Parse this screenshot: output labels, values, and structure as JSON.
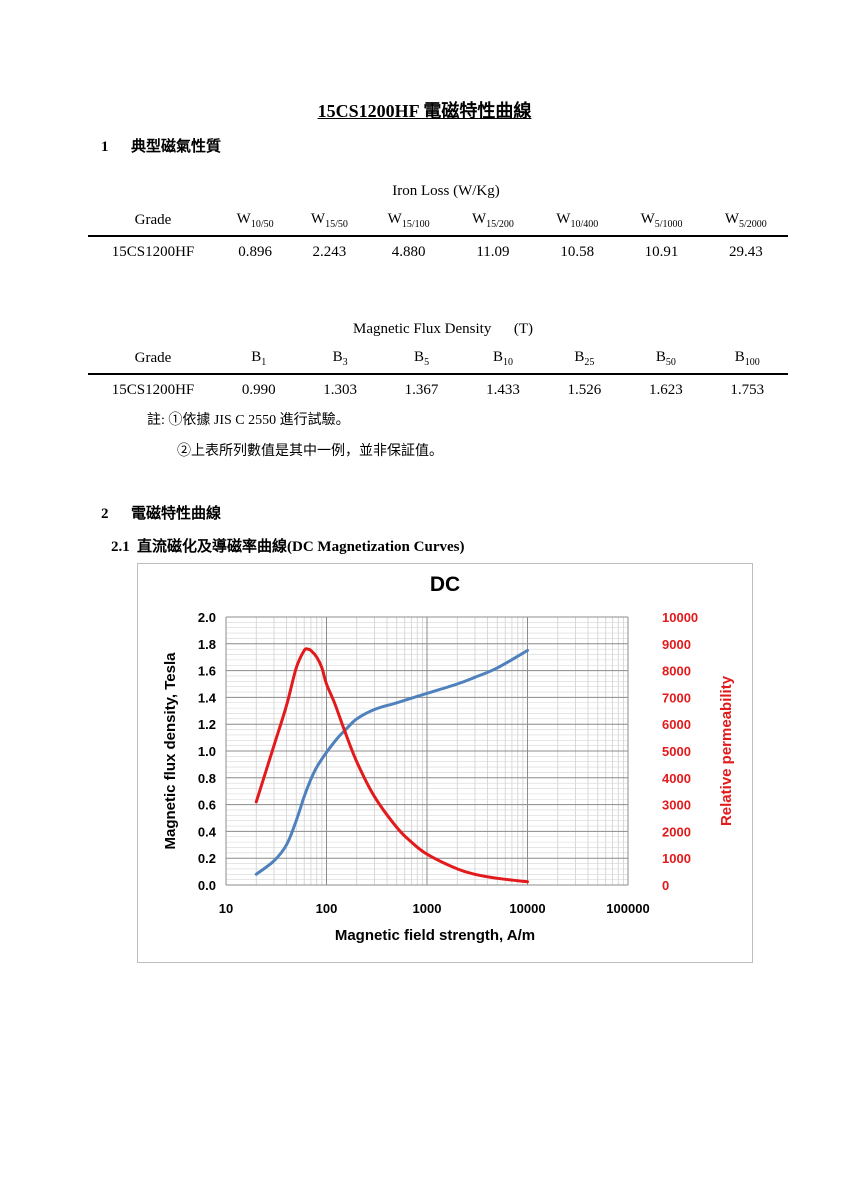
{
  "document": {
    "title": "15CS1200HF 電磁特性曲線"
  },
  "section1": {
    "number": "1",
    "title": "典型磁氣性質",
    "iron_loss_table": {
      "caption": "Iron Loss (W/Kg)",
      "grade_header": "Grade",
      "columns": [
        {
          "base": "W",
          "sub": "10/50"
        },
        {
          "base": "W",
          "sub": "15/50"
        },
        {
          "base": "W",
          "sub": "15/100"
        },
        {
          "base": "W",
          "sub": "15/200"
        },
        {
          "base": "W",
          "sub": "10/400"
        },
        {
          "base": "W",
          "sub": "5/1000"
        },
        {
          "base": "W",
          "sub": "5/2000"
        }
      ],
      "row": {
        "grade": "15CS1200HF",
        "values": [
          "0.896",
          "2.243",
          "4.880",
          "11.09",
          "10.58",
          "10.91",
          "29.43"
        ]
      }
    },
    "flux_density_table": {
      "caption": "Magnetic Flux Density      (T)",
      "grade_header": "Grade",
      "columns": [
        {
          "base": "B",
          "sub": "1"
        },
        {
          "base": "B",
          "sub": "3"
        },
        {
          "base": "B",
          "sub": "5"
        },
        {
          "base": "B",
          "sub": "10"
        },
        {
          "base": "B",
          "sub": "25"
        },
        {
          "base": "B",
          "sub": "50"
        },
        {
          "base": "B",
          "sub": "100"
        }
      ],
      "row": {
        "grade": "15CS1200HF",
        "values": [
          "0.990",
          "1.303",
          "1.367",
          "1.433",
          "1.526",
          "1.623",
          "1.753"
        ]
      }
    },
    "notes": {
      "label": "註:",
      "note1": "①依據 JIS C 2550 進行試驗。",
      "note2": "②上表所列數值是其中一例，並非保証值。"
    }
  },
  "section2": {
    "number": "2",
    "title": "電磁特性曲線",
    "subsection": {
      "number": "2.1",
      "title": "直流磁化及導磁率曲線(DC Magnetization Curves)"
    }
  },
  "chart_data": {
    "type": "line",
    "title": "DC",
    "xlabel": "Magnetic field strength, A/m",
    "ylabel": "Magnetic flux density, Tesla",
    "y2label": "Relative permeability",
    "x_scale": "log",
    "xlim": [
      10,
      100000
    ],
    "x_ticks": [
      "10",
      "100",
      "1000",
      "10000",
      "100000"
    ],
    "ylim": [
      0,
      2.0
    ],
    "y_ticks": [
      "0.0",
      "0.2",
      "0.4",
      "0.6",
      "0.8",
      "1.0",
      "1.2",
      "1.4",
      "1.6",
      "1.8",
      "2.0"
    ],
    "y2lim": [
      0,
      10000
    ],
    "y2_ticks": [
      "0",
      "1000",
      "2000",
      "3000",
      "4000",
      "5000",
      "6000",
      "7000",
      "8000",
      "9000",
      "10000"
    ],
    "grid": true,
    "colors": {
      "flux": "#4f81bd",
      "permeability": "#e31a1c",
      "y2_axis_text": "#e31a1c"
    },
    "series": [
      {
        "axis": "left",
        "x": [
          20,
          30,
          40,
          50,
          60,
          70,
          80,
          100,
          130,
          160,
          200,
          300,
          500,
          1000,
          2000,
          3000,
          5000,
          10000
        ],
        "values": [
          0.08,
          0.18,
          0.3,
          0.48,
          0.66,
          0.79,
          0.88,
          0.99,
          1.1,
          1.17,
          1.24,
          1.31,
          1.36,
          1.43,
          1.5,
          1.55,
          1.62,
          1.75
        ]
      },
      {
        "axis": "right",
        "x": [
          20,
          30,
          40,
          50,
          60,
          65,
          70,
          80,
          90,
          100,
          120,
          150,
          200,
          300,
          500,
          700,
          1000,
          2000,
          3000,
          5000,
          10000
        ],
        "values": [
          3100,
          5200,
          6700,
          8100,
          8750,
          8800,
          8750,
          8500,
          8100,
          7500,
          6800,
          5800,
          4600,
          3300,
          2150,
          1600,
          1150,
          600,
          400,
          250,
          120
        ]
      }
    ]
  }
}
